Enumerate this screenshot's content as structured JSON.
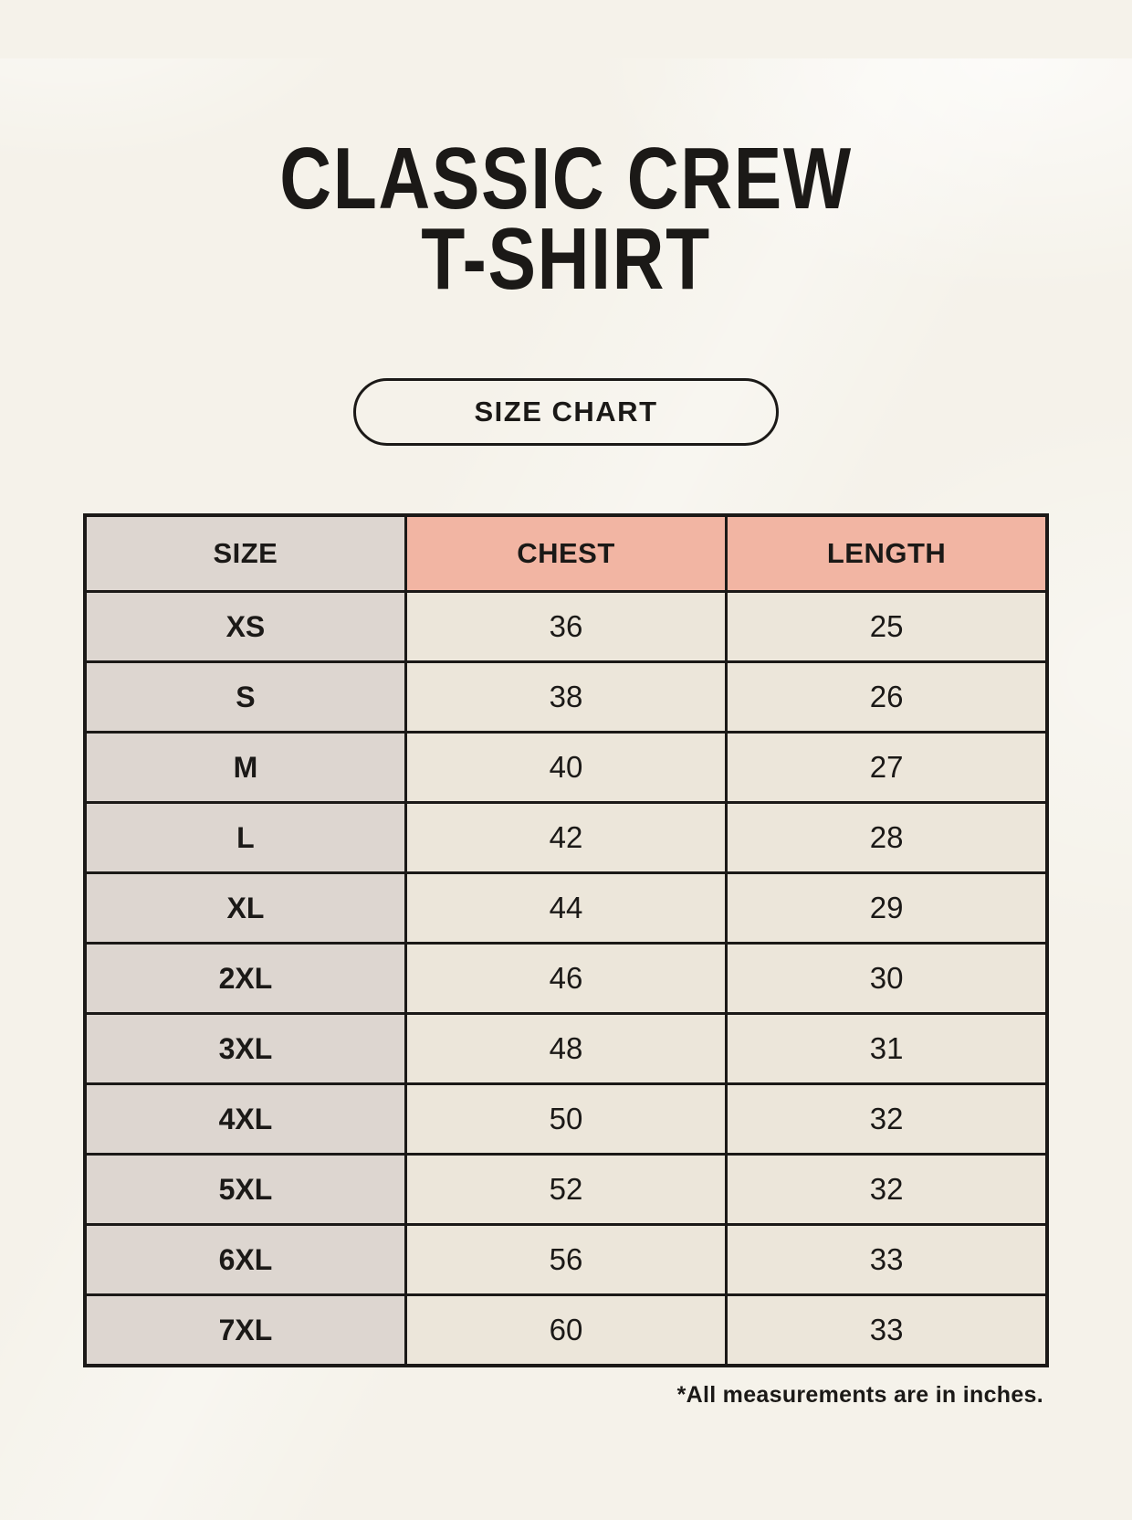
{
  "page": {
    "title_line1": "CLASSIC CREW",
    "title_line2": "T-SHIRT",
    "badge_label": "SIZE CHART",
    "footnote": "*All measurements are in inches."
  },
  "table": {
    "columns": [
      "SIZE",
      "CHEST",
      "LENGTH"
    ],
    "rows": [
      {
        "size": "XS",
        "chest": "36",
        "length": "25"
      },
      {
        "size": "S",
        "chest": "38",
        "length": "26"
      },
      {
        "size": "M",
        "chest": "40",
        "length": "27"
      },
      {
        "size": "L",
        "chest": "42",
        "length": "28"
      },
      {
        "size": "XL",
        "chest": "44",
        "length": "29"
      },
      {
        "size": "2XL",
        "chest": "46",
        "length": "30"
      },
      {
        "size": "3XL",
        "chest": "48",
        "length": "31"
      },
      {
        "size": "4XL",
        "chest": "50",
        "length": "32"
      },
      {
        "size": "5XL",
        "chest": "52",
        "length": "32"
      },
      {
        "size": "6XL",
        "chest": "56",
        "length": "33"
      },
      {
        "size": "7XL",
        "chest": "60",
        "length": "33"
      }
    ]
  },
  "colors": {
    "background": "#f5f2ea",
    "size_column_bg": "#ddd6d0",
    "measure_header_bg": "#f2b5a3",
    "value_cell_bg": "#ece6da",
    "border": "#1b1917",
    "text": "#1b1917"
  }
}
